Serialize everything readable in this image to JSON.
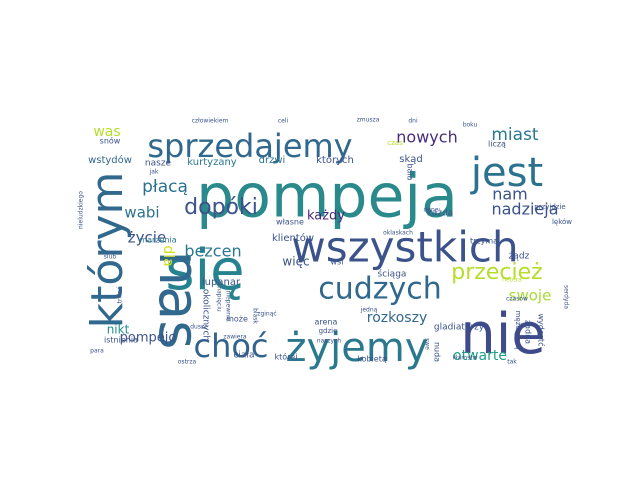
{
  "wordcloud": {
    "words": [
      {
        "text": "pompeja",
        "color": "#2a8a8b"
      },
      {
        "text": "wszystkich",
        "color": "#3b528b"
      },
      {
        "text": "się",
        "color": "#26828e"
      },
      {
        "text": "nie",
        "color": "#3e4a89"
      },
      {
        "text": "nas",
        "color": "#31688e"
      },
      {
        "text": "którym",
        "color": "#31688e"
      },
      {
        "text": "jest",
        "color": "#2c728e"
      },
      {
        "text": "sprzedajemy",
        "color": "#31688e"
      },
      {
        "text": "żyjemy",
        "color": "#2a788e"
      },
      {
        "text": "choć",
        "color": "#33638d"
      },
      {
        "text": "cudzych",
        "color": "#31688e"
      },
      {
        "text": "przecież",
        "color": "#b5de2b"
      },
      {
        "text": "dopóki",
        "color": "#3b528b"
      },
      {
        "text": "nam",
        "color": "#3b528b"
      },
      {
        "text": "płacą",
        "color": "#2c728e"
      },
      {
        "text": "miast",
        "color": "#2a788e"
      },
      {
        "text": "nowych",
        "color": "#472c7a"
      },
      {
        "text": "nadzieja",
        "color": "#3b528b"
      },
      {
        "text": "wabi",
        "color": "#2c728e"
      },
      {
        "text": "swoje",
        "color": "#a5db36"
      },
      {
        "text": "bezcen",
        "color": "#2a788e"
      },
      {
        "text": "życie",
        "color": "#3b528b"
      },
      {
        "text": "dla",
        "color": "#d2e21b"
      },
      {
        "text": "rozkoszy",
        "color": "#31688e"
      },
      {
        "text": "otwarte",
        "color": "#1f9e89"
      },
      {
        "text": "pompejo",
        "color": "#3b528b"
      },
      {
        "text": "nikt",
        "color": "#21918c"
      },
      {
        "text": "każdy",
        "color": "#482878"
      },
      {
        "text": "więc",
        "color": "#3b528b"
      },
      {
        "text": "was",
        "color": "#b5de2b"
      },
      {
        "text": "wstydów",
        "color": "#31688e"
      },
      {
        "text": "nasze",
        "color": "#3b528b"
      },
      {
        "text": "kurtyzany",
        "color": "#2a788e"
      },
      {
        "text": "drzwi",
        "color": "#2c728e"
      },
      {
        "text": "których",
        "color": "#3b528b"
      },
      {
        "text": "skąd",
        "color": "#3b528b"
      },
      {
        "text": "lupanar",
        "color": "#3b528b"
      },
      {
        "text": "klientów",
        "color": "#3b528b"
      },
      {
        "text": "ściąga",
        "color": "#3b528b"
      },
      {
        "text": "każda",
        "color": "#3b528b"
      },
      {
        "text": "trzyma",
        "color": "#3b528b"
      },
      {
        "text": "żądz",
        "color": "#3b528b"
      },
      {
        "text": "może",
        "color": "#3b528b"
      },
      {
        "text": "okolicznych",
        "color": "#3b528b"
      },
      {
        "text": "ciała",
        "color": "#3b528b"
      },
      {
        "text": "której",
        "color": "#3b528b"
      },
      {
        "text": "kobietą",
        "color": "#3b528b"
      },
      {
        "text": "mężczyzną",
        "color": "#3b528b"
      },
      {
        "text": "żadna",
        "color": "#3b528b"
      },
      {
        "text": "wydostć",
        "color": "#3b528b"
      },
      {
        "text": "istnienia",
        "color": "#3b528b"
      },
      {
        "text": "gladiatorzy",
        "color": "#3b528b"
      },
      {
        "text": "arena",
        "color": "#3b528b"
      },
      {
        "text": "gdzie",
        "color": "#3b528b"
      },
      {
        "text": "nuda",
        "color": "#3b528b"
      },
      {
        "text": "baia",
        "color": "#3b528b"
      },
      {
        "text": "czas",
        "color": "#b5de2b"
      },
      {
        "text": "liczą",
        "color": "#3b528b"
      },
      {
        "text": "snów",
        "color": "#3b528b"
      },
      {
        "text": "marzenia",
        "color": "#2a788e"
      },
      {
        "text": "własne",
        "color": "#3b528b"
      },
      {
        "text": "wsi",
        "color": "#3b528b"
      },
      {
        "text": "przyjdzie",
        "color": "#3b528b"
      },
      {
        "text": "człowiekiem",
        "color": "#3b528b"
      },
      {
        "text": "celi",
        "color": "#3b528b"
      },
      {
        "text": "zmusza",
        "color": "#3b528b"
      },
      {
        "text": "dni",
        "color": "#3b528b"
      },
      {
        "text": "boku",
        "color": "#3b528b"
      },
      {
        "text": "jak",
        "color": "#3b528b"
      },
      {
        "text": "nieludzkiego",
        "color": "#3b528b"
      },
      {
        "text": "ostrza",
        "color": "#3b528b"
      },
      {
        "text": "para",
        "color": "#3b528b"
      },
      {
        "text": "lęków",
        "color": "#3b528b"
      },
      {
        "text": "czasów",
        "color": "#3b528b"
      },
      {
        "text": "kłamstw",
        "color": "#3b528b"
      },
      {
        "text": "tak",
        "color": "#3b528b"
      },
      {
        "text": "jedną",
        "color": "#3b528b"
      },
      {
        "text": "naszych",
        "color": "#3b528b"
      },
      {
        "text": "dane",
        "color": "#3b528b"
      },
      {
        "text": "oklaskach",
        "color": "#3b528b"
      },
      {
        "text": "blask",
        "color": "#3b528b"
      },
      {
        "text": "zginąć",
        "color": "#3b528b"
      },
      {
        "text": "zawiera",
        "color": "#3b528b"
      },
      {
        "text": "dusze",
        "color": "#3b528b"
      },
      {
        "text": "napięciu",
        "color": "#3b528b"
      },
      {
        "text": "niepewnie",
        "color": "#3b528b"
      },
      {
        "text": "ślub",
        "color": "#3b528b"
      },
      {
        "text": "trwać",
        "color": "#3b528b"
      },
      {
        "text": "hetera",
        "color": "#b5de2b"
      },
      {
        "text": "serdyda",
        "color": "#3b528b"
      },
      {
        "text": "swe",
        "color": "#3b528b"
      }
    ]
  }
}
